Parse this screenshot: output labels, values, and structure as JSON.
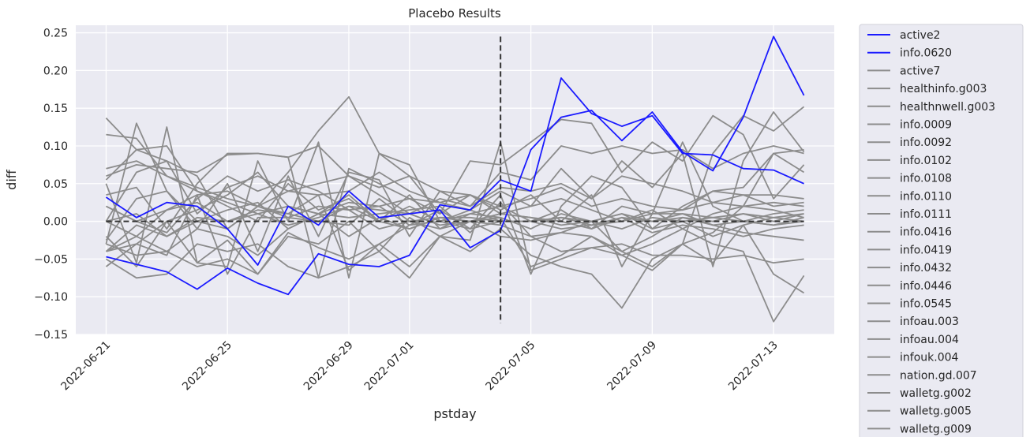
{
  "chart_data": {
    "type": "line",
    "title": "Placebo Results",
    "xlabel": "pstday",
    "ylabel": "diff",
    "ylim": [
      -0.15,
      0.26
    ],
    "xlim": [
      "2022-06-20",
      "2022-07-15"
    ],
    "grid": true,
    "legend_position": "outside-right",
    "y_ticks": [
      "−0.15",
      "−0.10",
      "−0.05",
      "0.00",
      "0.05",
      "0.10",
      "0.15",
      "0.20",
      "0.25"
    ],
    "x_ticks": [
      "2022-06-21",
      "2022-06-25",
      "2022-06-29",
      "2022-07-01",
      "2022-07-05",
      "2022-07-09",
      "2022-07-13"
    ],
    "x": [
      "2022-06-21",
      "2022-06-22",
      "2022-06-23",
      "2022-06-24",
      "2022-06-25",
      "2022-06-26",
      "2022-06-27",
      "2022-06-28",
      "2022-06-29",
      "2022-06-30",
      "2022-07-01",
      "2022-07-02",
      "2022-07-03",
      "2022-07-04",
      "2022-07-05",
      "2022-07-06",
      "2022-07-07",
      "2022-07-08",
      "2022-07-09",
      "2022-07-10",
      "2022-07-11",
      "2022-07-12",
      "2022-07-13",
      "2022-07-14"
    ],
    "reference_lines": {
      "hline_y": 0.0,
      "vline_x": "2022-07-04",
      "vline_range": [
        -0.135,
        0.245
      ],
      "color": "#333333"
    },
    "colors": {
      "treated": "#1a1aff",
      "placebo": "#8c8c8c"
    },
    "series": [
      {
        "name": "active2",
        "group": "treated",
        "values": [
          0.032,
          0.005,
          0.025,
          0.02,
          -0.01,
          -0.058,
          0.02,
          -0.005,
          0.04,
          0.005,
          0.01,
          0.015,
          -0.035,
          -0.012,
          0.095,
          0.138,
          0.147,
          0.107,
          0.145,
          0.092,
          0.067,
          0.138,
          0.245,
          0.167
        ]
      },
      {
        "name": "info.0620",
        "group": "treated",
        "values": [
          -0.047,
          -0.057,
          -0.067,
          -0.09,
          -0.062,
          -0.082,
          -0.097,
          -0.043,
          -0.057,
          -0.06,
          -0.045,
          0.022,
          0.015,
          0.055,
          0.04,
          0.19,
          0.143,
          0.126,
          0.14,
          0.09,
          0.088,
          0.07,
          0.068,
          0.05
        ]
      },
      {
        "name": "active7",
        "group": "placebo",
        "values": [
          0.137,
          0.095,
          0.1,
          0.04,
          0.02,
          0.0,
          0.05,
          0.015,
          0.03,
          0.0,
          0.035,
          -0.01,
          0.0,
          0.005,
          -0.06,
          -0.045,
          -0.02,
          -0.04,
          -0.06,
          -0.03,
          -0.015,
          0.02,
          0.09,
          0.095
        ]
      },
      {
        "name": "healthinfo.g003",
        "group": "placebo",
        "values": [
          0.115,
          0.11,
          0.06,
          0.04,
          0.025,
          0.01,
          0.02,
          0.01,
          0.035,
          0.0,
          0.02,
          0.0,
          0.015,
          0.0,
          0.0,
          0.005,
          0.0,
          -0.01,
          0.005,
          0.0,
          0.005,
          0.01,
          0.0,
          0.01
        ]
      },
      {
        "name": "healthnwell.g003",
        "group": "placebo",
        "values": [
          0.07,
          0.08,
          0.06,
          0.045,
          0.03,
          0.02,
          0.04,
          0.05,
          0.06,
          0.035,
          0.01,
          0.03,
          0.02,
          0.045,
          0.04,
          0.05,
          0.03,
          0.06,
          0.05,
          0.04,
          0.025,
          0.035,
          0.035,
          0.03
        ]
      },
      {
        "name": "info.0009",
        "group": "placebo",
        "values": [
          -0.05,
          -0.075,
          -0.07,
          -0.03,
          -0.04,
          -0.03,
          -0.06,
          -0.075,
          -0.06,
          -0.04,
          -0.075,
          -0.02,
          -0.04,
          -0.01,
          -0.045,
          -0.06,
          -0.07,
          -0.115,
          -0.05,
          -0.03,
          -0.055,
          -0.005,
          -0.07,
          -0.095
        ]
      },
      {
        "name": "info.0092",
        "group": "placebo",
        "values": [
          -0.03,
          0.13,
          0.04,
          -0.01,
          0.05,
          -0.04,
          0.06,
          -0.02,
          0.065,
          0.055,
          -0.02,
          0.04,
          0.035,
          0.015,
          0.035,
          0.0,
          0.035,
          -0.06,
          0.01,
          0.105,
          0.02,
          0.0,
          -0.005,
          0.0
        ]
      },
      {
        "name": "info.0102",
        "group": "placebo",
        "values": [
          -0.025,
          0.03,
          0.04,
          0.0,
          -0.01,
          0.02,
          0.005,
          0.0,
          -0.005,
          0.03,
          0.0,
          -0.01,
          0.01,
          0.005,
          -0.01,
          0.01,
          0.0,
          0.01,
          -0.01,
          0.0,
          -0.02,
          -0.005,
          0.005,
          0.01
        ]
      },
      {
        "name": "info.0108",
        "group": "placebo",
        "values": [
          0.05,
          -0.055,
          0.125,
          -0.055,
          -0.06,
          0.08,
          0.0,
          0.105,
          -0.075,
          0.09,
          0.075,
          0.0,
          -0.01,
          0.035,
          -0.07,
          0.02,
          0.06,
          0.045,
          -0.01,
          0.02,
          0.04,
          0.045,
          0.09,
          0.065
        ]
      },
      {
        "name": "info.0110",
        "group": "placebo",
        "values": [
          0.0,
          -0.02,
          0.015,
          0.025,
          0.0,
          0.01,
          -0.005,
          0.005,
          0.02,
          0.0,
          -0.01,
          0.005,
          0.0,
          0.01,
          0.005,
          -0.005,
          0.0,
          0.01,
          0.0,
          0.005,
          0.0,
          0.01,
          0.005,
          0.0
        ]
      },
      {
        "name": "info.0111",
        "group": "placebo",
        "values": [
          -0.06,
          -0.03,
          -0.045,
          0.035,
          -0.07,
          0.005,
          0.005,
          0.02,
          0.015,
          -0.01,
          0.0,
          0.005,
          0.0,
          -0.005,
          -0.02,
          -0.015,
          0.0,
          -0.04,
          -0.02,
          0.005,
          -0.005,
          -0.015,
          -0.02,
          -0.025
        ]
      },
      {
        "name": "info.0416",
        "group": "placebo",
        "values": [
          0.0,
          0.065,
          0.08,
          0.06,
          -0.01,
          0.02,
          0.065,
          0.12,
          0.165,
          0.09,
          0.06,
          0.04,
          0.02,
          0.065,
          0.055,
          0.1,
          0.09,
          0.1,
          0.09,
          0.095,
          0.07,
          0.09,
          0.1,
          0.09
        ]
      },
      {
        "name": "info.0419",
        "group": "placebo",
        "values": [
          0.035,
          0.045,
          -0.01,
          0.05,
          0.09,
          0.09,
          0.085,
          -0.075,
          0.07,
          0.05,
          0.03,
          0.025,
          0.035,
          0.01,
          0.02,
          0.07,
          0.03,
          0.08,
          0.045,
          0.09,
          -0.06,
          0.08,
          0.145,
          0.092
        ]
      },
      {
        "name": "info.0432",
        "group": "placebo",
        "values": [
          0.055,
          0.095,
          0.08,
          0.01,
          0.045,
          0.06,
          0.04,
          0.035,
          0.04,
          0.065,
          0.04,
          0.025,
          0.015,
          0.04,
          0.02,
          0.03,
          0.015,
          0.0,
          0.015,
          -0.01,
          0.01,
          0.02,
          0.015,
          0.005
        ]
      },
      {
        "name": "info.0446",
        "group": "placebo",
        "values": [
          -0.02,
          -0.06,
          0.0,
          0.015,
          0.035,
          0.065,
          0.02,
          0.01,
          0.025,
          0.02,
          -0.005,
          0.015,
          -0.01,
          0.0,
          0.0,
          0.005,
          -0.005,
          0.0,
          0.01,
          0.01,
          -0.005,
          0.0,
          -0.005,
          0.005
        ]
      },
      {
        "name": "info.0545",
        "group": "placebo",
        "values": [
          -0.04,
          -0.005,
          -0.02,
          0.0,
          0.015,
          0.025,
          -0.01,
          0.01,
          0.005,
          0.01,
          0.015,
          0.02,
          -0.015,
          0.025,
          -0.02,
          -0.04,
          -0.035,
          -0.03,
          -0.045,
          -0.045,
          -0.05,
          -0.045,
          -0.055,
          -0.05
        ]
      },
      {
        "name": "infoau.003",
        "group": "placebo",
        "values": [
          0.02,
          0.0,
          -0.015,
          0.03,
          0.06,
          0.04,
          0.055,
          0.04,
          0.015,
          0.02,
          0.03,
          0.01,
          0.035,
          0.02,
          0.03,
          0.045,
          0.02,
          0.03,
          0.02,
          0.015,
          0.04,
          0.035,
          0.02,
          0.025
        ]
      },
      {
        "name": "infoau.004",
        "group": "placebo",
        "values": [
          0.0,
          0.01,
          -0.02,
          0.005,
          0.0,
          0.015,
          0.01,
          0.0,
          0.02,
          0.015,
          0.01,
          -0.005,
          0.0,
          0.01,
          0.005,
          0.0,
          -0.01,
          0.005,
          0.0,
          0.01,
          0.005,
          0.0,
          0.01,
          0.015
        ]
      },
      {
        "name": "infouk.004",
        "group": "placebo",
        "values": [
          -0.03,
          -0.045,
          -0.04,
          -0.06,
          -0.05,
          -0.07,
          -0.015,
          -0.035,
          -0.05,
          -0.03,
          -0.06,
          -0.02,
          -0.025,
          0.105,
          -0.065,
          -0.05,
          -0.035,
          -0.045,
          -0.065,
          -0.03,
          0.09,
          0.14,
          0.12,
          0.152
        ]
      },
      {
        "name": "nation.gd.007",
        "group": "placebo",
        "values": [
          0.06,
          0.075,
          0.07,
          0.065,
          0.088,
          0.09,
          0.085,
          0.1,
          0.06,
          0.045,
          0.06,
          0.01,
          0.08,
          0.075,
          0.105,
          0.135,
          0.13,
          0.065,
          0.105,
          0.08,
          0.14,
          0.115,
          0.03,
          0.075
        ]
      },
      {
        "name": "walletg.g002",
        "group": "placebo",
        "values": [
          -0.04,
          -0.02,
          -0.04,
          -0.01,
          -0.02,
          -0.045,
          -0.01,
          0.01,
          -0.02,
          0.005,
          -0.01,
          0.005,
          0.005,
          0.0,
          0.0,
          -0.01,
          -0.005,
          0.005,
          -0.015,
          -0.005,
          -0.01,
          -0.02,
          -0.01,
          -0.005
        ]
      },
      {
        "name": "walletg.g005",
        "group": "placebo",
        "values": [
          0.02,
          0.0,
          0.015,
          0.035,
          0.04,
          0.02,
          0.01,
          0.035,
          -0.065,
          -0.03,
          -0.005,
          0.0,
          0.01,
          0.02,
          0.0,
          0.015,
          -0.01,
          0.02,
          0.01,
          0.015,
          0.025,
          0.02,
          0.025,
          0.02
        ]
      },
      {
        "name": "walletg.g009",
        "group": "placebo",
        "values": [
          -0.04,
          -0.03,
          0.0,
          -0.055,
          -0.025,
          -0.07,
          -0.02,
          -0.03,
          0.0,
          -0.04,
          0.005,
          -0.02,
          0.0,
          -0.02,
          -0.025,
          -0.015,
          -0.02,
          -0.045,
          -0.03,
          -0.01,
          -0.03,
          -0.04,
          -0.133,
          -0.072
        ]
      }
    ]
  }
}
